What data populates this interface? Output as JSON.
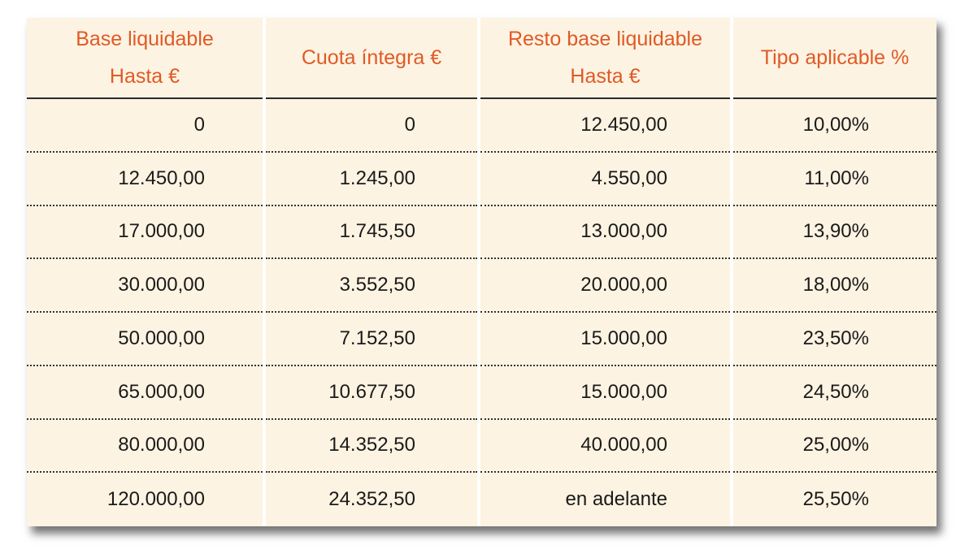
{
  "table": {
    "header": [
      [
        "Base liquidable",
        "Hasta €"
      ],
      [
        "Cuota íntegra €"
      ],
      [
        "Resto base liquidable",
        "Hasta €"
      ],
      [
        "Tipo aplicable %"
      ]
    ],
    "rows": [
      [
        "0",
        "0",
        "12.450,00",
        "10,00%"
      ],
      [
        "12.450,00",
        "1.245,00",
        "4.550,00",
        "11,00%"
      ],
      [
        "17.000,00",
        "1.745,50",
        "13.000,00",
        "13,90%"
      ],
      [
        "30.000,00",
        "3.552,50",
        "20.000,00",
        "18,00%"
      ],
      [
        "50.000,00",
        "7.152,50",
        "15.000,00",
        "23,50%"
      ],
      [
        "65.000,00",
        "10.677,50",
        "15.000,00",
        "24,50%"
      ],
      [
        "80.000,00",
        "14.352,50",
        "40.000,00",
        "25,00%"
      ],
      [
        "120.000,00",
        "24.352,50",
        "en adelante",
        "25,50%"
      ]
    ]
  }
}
